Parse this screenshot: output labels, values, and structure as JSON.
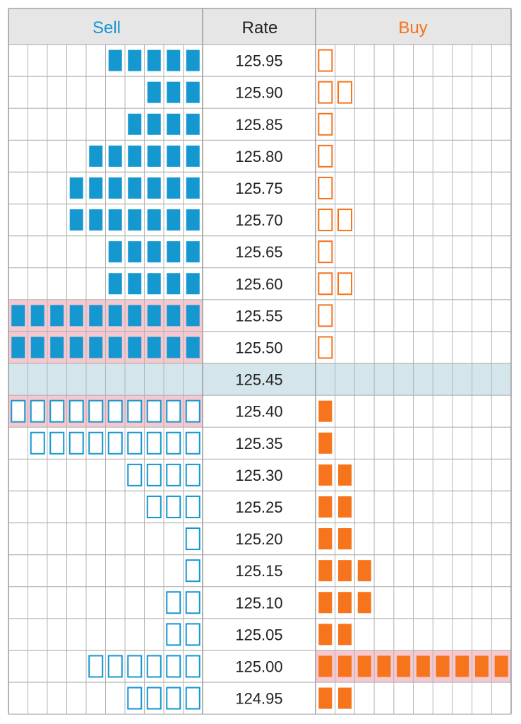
{
  "header": {
    "sell_label": "Sell",
    "rate_label": "Rate",
    "buy_label": "Buy"
  },
  "colors": {
    "sell": "#1597d0",
    "buy": "#f5741c",
    "highlight": "#f6c9d1",
    "current_row": "#d4e6ec",
    "header_bg": "#e6e6e6",
    "grid": "#b4b4b4"
  },
  "chart_data": {
    "type": "table",
    "title": "",
    "columns": [
      "Sell",
      "Rate",
      "Buy"
    ],
    "current_rate": "125.45",
    "rows": [
      {
        "rate": "125.95",
        "sell_count": 5,
        "sell_filled": true,
        "buy_count": 1,
        "buy_filled": false,
        "sell_highlight": false,
        "buy_highlight": false
      },
      {
        "rate": "125.90",
        "sell_count": 3,
        "sell_filled": true,
        "buy_count": 2,
        "buy_filled": false,
        "sell_highlight": false,
        "buy_highlight": false
      },
      {
        "rate": "125.85",
        "sell_count": 4,
        "sell_filled": true,
        "buy_count": 1,
        "buy_filled": false,
        "sell_highlight": false,
        "buy_highlight": false
      },
      {
        "rate": "125.80",
        "sell_count": 6,
        "sell_filled": true,
        "buy_count": 1,
        "buy_filled": false,
        "sell_highlight": false,
        "buy_highlight": false
      },
      {
        "rate": "125.75",
        "sell_count": 7,
        "sell_filled": true,
        "buy_count": 1,
        "buy_filled": false,
        "sell_highlight": false,
        "buy_highlight": false
      },
      {
        "rate": "125.70",
        "sell_count": 7,
        "sell_filled": true,
        "buy_count": 2,
        "buy_filled": false,
        "sell_highlight": false,
        "buy_highlight": false
      },
      {
        "rate": "125.65",
        "sell_count": 5,
        "sell_filled": true,
        "buy_count": 1,
        "buy_filled": false,
        "sell_highlight": false,
        "buy_highlight": false
      },
      {
        "rate": "125.60",
        "sell_count": 5,
        "sell_filled": true,
        "buy_count": 2,
        "buy_filled": false,
        "sell_highlight": false,
        "buy_highlight": false
      },
      {
        "rate": "125.55",
        "sell_count": 10,
        "sell_filled": true,
        "buy_count": 1,
        "buy_filled": false,
        "sell_highlight": true,
        "buy_highlight": false
      },
      {
        "rate": "125.50",
        "sell_count": 10,
        "sell_filled": true,
        "buy_count": 1,
        "buy_filled": false,
        "sell_highlight": true,
        "buy_highlight": false
      },
      {
        "rate": "125.45",
        "sell_count": 0,
        "sell_filled": true,
        "buy_count": 0,
        "buy_filled": true,
        "sell_highlight": false,
        "buy_highlight": false,
        "current": true
      },
      {
        "rate": "125.40",
        "sell_count": 10,
        "sell_filled": false,
        "buy_count": 1,
        "buy_filled": true,
        "sell_highlight": true,
        "buy_highlight": false
      },
      {
        "rate": "125.35",
        "sell_count": 9,
        "sell_filled": false,
        "buy_count": 1,
        "buy_filled": true,
        "sell_highlight": false,
        "buy_highlight": false
      },
      {
        "rate": "125.30",
        "sell_count": 4,
        "sell_filled": false,
        "buy_count": 2,
        "buy_filled": true,
        "sell_highlight": false,
        "buy_highlight": false
      },
      {
        "rate": "125.25",
        "sell_count": 3,
        "sell_filled": false,
        "buy_count": 2,
        "buy_filled": true,
        "sell_highlight": false,
        "buy_highlight": false
      },
      {
        "rate": "125.20",
        "sell_count": 1,
        "sell_filled": false,
        "buy_count": 2,
        "buy_filled": true,
        "sell_highlight": false,
        "buy_highlight": false
      },
      {
        "rate": "125.15",
        "sell_count": 1,
        "sell_filled": false,
        "buy_count": 3,
        "buy_filled": true,
        "sell_highlight": false,
        "buy_highlight": false
      },
      {
        "rate": "125.10",
        "sell_count": 2,
        "sell_filled": false,
        "buy_count": 3,
        "buy_filled": true,
        "sell_highlight": false,
        "buy_highlight": false
      },
      {
        "rate": "125.05",
        "sell_count": 2,
        "sell_filled": false,
        "buy_count": 2,
        "buy_filled": true,
        "sell_highlight": false,
        "buy_highlight": false
      },
      {
        "rate": "125.00",
        "sell_count": 6,
        "sell_filled": false,
        "buy_count": 10,
        "buy_filled": true,
        "sell_highlight": false,
        "buy_highlight": true
      },
      {
        "rate": "124.95",
        "sell_count": 4,
        "sell_filled": false,
        "buy_count": 2,
        "buy_filled": true,
        "sell_highlight": false,
        "buy_highlight": false
      }
    ]
  }
}
